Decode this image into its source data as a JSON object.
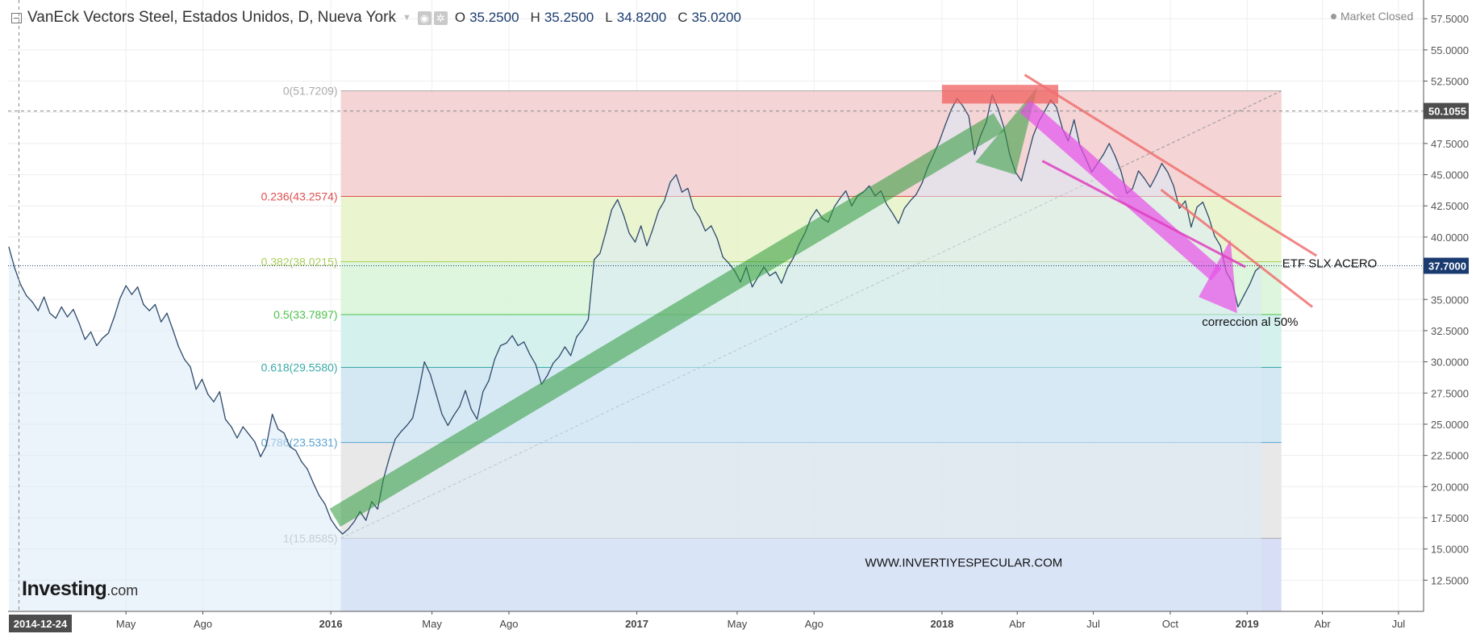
{
  "header": {
    "title": "VanEck Vectors Steel, Estados Unidos, D, Nueva York",
    "open_label": "O",
    "open_value": "35.2500",
    "high_label": "H",
    "high_value": "35.2500",
    "low_label": "L",
    "low_value": "34.8200",
    "close_label": "C",
    "close_value": "35.0200",
    "market_status": "Market Closed",
    "logo_main": "Investing",
    "logo_suffix": ".com"
  },
  "chart_data": {
    "type": "line",
    "title": "VanEck Vectors Steel, Estados Unidos, D, Nueva York",
    "xlabel": "",
    "ylabel": "",
    "ylim": [
      10.0,
      59.0
    ],
    "xlim": [
      "2014-12-11",
      "2019-07-31"
    ],
    "grid": true,
    "price_axis_side": "right",
    "price_axis_ticks": [
      12.5,
      15,
      17.5,
      20,
      22.5,
      25,
      27.5,
      30,
      32.5,
      35,
      37.5,
      40,
      42.5,
      45,
      47.5,
      50,
      52.5,
      55,
      57.5
    ],
    "price_axis_labels": [
      "12.5000",
      "15.0000",
      "17.5000",
      "20.0000",
      "22.5000",
      "25.0000",
      "27.5000",
      "30.0000",
      "32.5000",
      "35.0000",
      "37.5000",
      "40.0000",
      "42.5000",
      "45.0000",
      "47.5000",
      "50.0000",
      "52.5000",
      "55.0000",
      "57.5000"
    ],
    "time_axis": [
      {
        "date": "2015-05-01",
        "label": "May",
        "bold": false
      },
      {
        "date": "2015-08-01",
        "label": "Ago",
        "bold": false
      },
      {
        "date": "2016-01-01",
        "label": "2016",
        "bold": true
      },
      {
        "date": "2016-05-01",
        "label": "May",
        "bold": false
      },
      {
        "date": "2016-08-01",
        "label": "Ago",
        "bold": false
      },
      {
        "date": "2017-01-01",
        "label": "2017",
        "bold": true
      },
      {
        "date": "2017-05-01",
        "label": "May",
        "bold": false
      },
      {
        "date": "2017-08-01",
        "label": "Ago",
        "bold": false
      },
      {
        "date": "2018-01-01",
        "label": "2018",
        "bold": true
      },
      {
        "date": "2018-04-01",
        "label": "Abr",
        "bold": false
      },
      {
        "date": "2018-07-01",
        "label": "Jul",
        "bold": false
      },
      {
        "date": "2018-10-01",
        "label": "Oct",
        "bold": false
      },
      {
        "date": "2019-01-01",
        "label": "2019",
        "bold": true
      },
      {
        "date": "2019-04-01",
        "label": "Abr",
        "bold": false
      },
      {
        "date": "2019-07-01",
        "label": "Jul",
        "bold": false
      }
    ],
    "crosshair": {
      "date": "2014-12-24",
      "date_label": "2014-12-24",
      "price": 50.1055,
      "price_label": "50.1055"
    },
    "last_price": {
      "value": 37.7,
      "label": "37.7000"
    },
    "series": [
      {
        "name": "",
        "color": "#2e4a6b",
        "fill": "#dbe9f7",
        "points": [
          [
            "2014-12-12",
            39.2
          ],
          [
            "2014-12-19",
            37.5
          ],
          [
            "2014-12-26",
            36.2
          ],
          [
            "2015-01-02",
            35.3
          ],
          [
            "2015-01-09",
            34.8
          ],
          [
            "2015-01-16",
            34.1
          ],
          [
            "2015-01-23",
            35.2
          ],
          [
            "2015-01-30",
            33.9
          ],
          [
            "2015-02-06",
            33.5
          ],
          [
            "2015-02-13",
            34.4
          ],
          [
            "2015-02-20",
            33.6
          ],
          [
            "2015-02-27",
            34.2
          ],
          [
            "2015-03-06",
            33.1
          ],
          [
            "2015-03-13",
            31.8
          ],
          [
            "2015-03-20",
            32.4
          ],
          [
            "2015-03-27",
            31.3
          ],
          [
            "2015-04-03",
            31.9
          ],
          [
            "2015-04-10",
            32.3
          ],
          [
            "2015-04-17",
            33.6
          ],
          [
            "2015-04-24",
            35.1
          ],
          [
            "2015-05-01",
            36.1
          ],
          [
            "2015-05-08",
            35.4
          ],
          [
            "2015-05-15",
            36.0
          ],
          [
            "2015-05-22",
            34.6
          ],
          [
            "2015-05-29",
            34.1
          ],
          [
            "2015-06-05",
            34.6
          ],
          [
            "2015-06-12",
            33.2
          ],
          [
            "2015-06-19",
            33.9
          ],
          [
            "2015-06-26",
            32.6
          ],
          [
            "2015-07-03",
            31.2
          ],
          [
            "2015-07-10",
            30.2
          ],
          [
            "2015-07-17",
            29.6
          ],
          [
            "2015-07-24",
            27.8
          ],
          [
            "2015-07-31",
            28.6
          ],
          [
            "2015-08-07",
            27.4
          ],
          [
            "2015-08-14",
            26.8
          ],
          [
            "2015-08-21",
            27.6
          ],
          [
            "2015-08-28",
            25.4
          ],
          [
            "2015-09-04",
            24.8
          ],
          [
            "2015-09-11",
            23.9
          ],
          [
            "2015-09-18",
            24.8
          ],
          [
            "2015-09-25",
            24.2
          ],
          [
            "2015-10-02",
            23.6
          ],
          [
            "2015-10-09",
            22.4
          ],
          [
            "2015-10-16",
            23.3
          ],
          [
            "2015-10-23",
            25.8
          ],
          [
            "2015-10-30",
            24.6
          ],
          [
            "2015-11-06",
            24.3
          ],
          [
            "2015-11-13",
            23.2
          ],
          [
            "2015-11-20",
            22.9
          ],
          [
            "2015-11-27",
            22.0
          ],
          [
            "2015-12-04",
            21.4
          ],
          [
            "2015-12-11",
            20.3
          ],
          [
            "2015-12-18",
            19.3
          ],
          [
            "2015-12-25",
            18.6
          ],
          [
            "2016-01-01",
            17.4
          ],
          [
            "2016-01-08",
            16.7
          ],
          [
            "2016-01-15",
            16.2
          ],
          [
            "2016-01-22",
            16.6
          ],
          [
            "2016-01-29",
            17.2
          ],
          [
            "2016-02-05",
            18.0
          ],
          [
            "2016-02-12",
            17.3
          ],
          [
            "2016-02-19",
            18.8
          ],
          [
            "2016-02-26",
            18.2
          ],
          [
            "2016-03-04",
            20.6
          ],
          [
            "2016-03-11",
            22.3
          ],
          [
            "2016-03-18",
            23.8
          ],
          [
            "2016-03-25",
            24.4
          ],
          [
            "2016-04-01",
            24.9
          ],
          [
            "2016-04-08",
            25.5
          ],
          [
            "2016-04-15",
            27.6
          ],
          [
            "2016-04-22",
            30.0
          ],
          [
            "2016-04-29",
            29.0
          ],
          [
            "2016-05-06",
            27.4
          ],
          [
            "2016-05-13",
            25.8
          ],
          [
            "2016-05-20",
            24.9
          ],
          [
            "2016-05-27",
            25.7
          ],
          [
            "2016-06-03",
            26.4
          ],
          [
            "2016-06-10",
            27.7
          ],
          [
            "2016-06-17",
            26.2
          ],
          [
            "2016-06-24",
            25.4
          ],
          [
            "2016-07-01",
            27.6
          ],
          [
            "2016-07-08",
            28.5
          ],
          [
            "2016-07-15",
            30.2
          ],
          [
            "2016-07-22",
            31.3
          ],
          [
            "2016-07-29",
            31.5
          ],
          [
            "2016-08-05",
            32.1
          ],
          [
            "2016-08-12",
            31.3
          ],
          [
            "2016-08-19",
            31.6
          ],
          [
            "2016-08-26",
            30.6
          ],
          [
            "2016-09-02",
            29.8
          ],
          [
            "2016-09-09",
            28.2
          ],
          [
            "2016-09-16",
            28.9
          ],
          [
            "2016-09-23",
            29.9
          ],
          [
            "2016-09-30",
            30.4
          ],
          [
            "2016-10-07",
            31.2
          ],
          [
            "2016-10-14",
            30.5
          ],
          [
            "2016-10-21",
            32.0
          ],
          [
            "2016-10-28",
            32.6
          ],
          [
            "2016-11-04",
            33.4
          ],
          [
            "2016-11-11",
            38.2
          ],
          [
            "2016-11-18",
            38.7
          ],
          [
            "2016-11-25",
            40.4
          ],
          [
            "2016-12-02",
            42.2
          ],
          [
            "2016-12-09",
            43.0
          ],
          [
            "2016-12-16",
            41.8
          ],
          [
            "2016-12-23",
            40.3
          ],
          [
            "2016-12-30",
            39.6
          ],
          [
            "2017-01-06",
            40.9
          ],
          [
            "2017-01-13",
            39.3
          ],
          [
            "2017-01-20",
            40.6
          ],
          [
            "2017-01-27",
            42.1
          ],
          [
            "2017-02-03",
            42.9
          ],
          [
            "2017-02-10",
            44.4
          ],
          [
            "2017-02-17",
            45.0
          ],
          [
            "2017-02-24",
            43.6
          ],
          [
            "2017-03-03",
            43.9
          ],
          [
            "2017-03-10",
            42.3
          ],
          [
            "2017-03-17",
            41.6
          ],
          [
            "2017-03-24",
            40.5
          ],
          [
            "2017-03-31",
            40.9
          ],
          [
            "2017-04-07",
            39.9
          ],
          [
            "2017-04-14",
            38.4
          ],
          [
            "2017-04-21",
            37.9
          ],
          [
            "2017-04-28",
            37.3
          ],
          [
            "2017-05-05",
            36.4
          ],
          [
            "2017-05-12",
            37.6
          ],
          [
            "2017-05-19",
            36.0
          ],
          [
            "2017-05-26",
            36.8
          ],
          [
            "2017-06-02",
            37.6
          ],
          [
            "2017-06-09",
            36.9
          ],
          [
            "2017-06-16",
            37.2
          ],
          [
            "2017-06-23",
            36.3
          ],
          [
            "2017-06-30",
            37.5
          ],
          [
            "2017-07-07",
            38.3
          ],
          [
            "2017-07-14",
            39.4
          ],
          [
            "2017-07-21",
            40.3
          ],
          [
            "2017-07-28",
            41.5
          ],
          [
            "2017-08-04",
            42.2
          ],
          [
            "2017-08-11",
            41.5
          ],
          [
            "2017-08-18",
            41.2
          ],
          [
            "2017-08-25",
            42.4
          ],
          [
            "2017-09-01",
            43.1
          ],
          [
            "2017-09-08",
            43.7
          ],
          [
            "2017-09-15",
            42.5
          ],
          [
            "2017-09-22",
            43.3
          ],
          [
            "2017-09-29",
            43.6
          ],
          [
            "2017-10-06",
            44.1
          ],
          [
            "2017-10-13",
            43.3
          ],
          [
            "2017-10-20",
            43.7
          ],
          [
            "2017-10-27",
            42.6
          ],
          [
            "2017-11-03",
            41.9
          ],
          [
            "2017-11-10",
            41.1
          ],
          [
            "2017-11-17",
            42.3
          ],
          [
            "2017-11-24",
            42.9
          ],
          [
            "2017-12-01",
            43.4
          ],
          [
            "2017-12-08",
            44.3
          ],
          [
            "2017-12-15",
            45.6
          ],
          [
            "2017-12-22",
            46.6
          ],
          [
            "2017-12-29",
            47.7
          ],
          [
            "2018-01-05",
            49.0
          ],
          [
            "2018-01-12",
            50.2
          ],
          [
            "2018-01-19",
            51.1
          ],
          [
            "2018-01-26",
            50.5
          ],
          [
            "2018-02-02",
            49.7
          ],
          [
            "2018-02-09",
            46.6
          ],
          [
            "2018-02-16",
            48.1
          ],
          [
            "2018-02-23",
            49.2
          ],
          [
            "2018-03-02",
            51.4
          ],
          [
            "2018-03-09",
            50.3
          ],
          [
            "2018-03-16",
            48.8
          ],
          [
            "2018-03-23",
            46.6
          ],
          [
            "2018-03-30",
            45.2
          ],
          [
            "2018-04-06",
            44.5
          ],
          [
            "2018-04-13",
            46.3
          ],
          [
            "2018-04-20",
            48.1
          ],
          [
            "2018-04-27",
            49.3
          ],
          [
            "2018-05-04",
            50.1
          ],
          [
            "2018-05-11",
            51.0
          ],
          [
            "2018-05-18",
            50.4
          ],
          [
            "2018-05-25",
            48.7
          ],
          [
            "2018-06-01",
            47.7
          ],
          [
            "2018-06-08",
            49.4
          ],
          [
            "2018-06-15",
            47.3
          ],
          [
            "2018-06-22",
            46.3
          ],
          [
            "2018-06-29",
            45.2
          ],
          [
            "2018-07-06",
            45.9
          ],
          [
            "2018-07-13",
            46.6
          ],
          [
            "2018-07-20",
            47.5
          ],
          [
            "2018-07-27",
            46.5
          ],
          [
            "2018-08-03",
            45.3
          ],
          [
            "2018-08-10",
            43.5
          ],
          [
            "2018-08-17",
            43.9
          ],
          [
            "2018-08-24",
            45.3
          ],
          [
            "2018-08-31",
            44.7
          ],
          [
            "2018-09-07",
            44.0
          ],
          [
            "2018-09-14",
            44.9
          ],
          [
            "2018-09-21",
            45.9
          ],
          [
            "2018-09-28",
            45.2
          ],
          [
            "2018-10-05",
            44.1
          ],
          [
            "2018-10-12",
            42.3
          ],
          [
            "2018-10-19",
            42.9
          ],
          [
            "2018-10-26",
            40.8
          ],
          [
            "2018-11-02",
            42.4
          ],
          [
            "2018-11-09",
            42.8
          ],
          [
            "2018-11-16",
            41.6
          ],
          [
            "2018-11-23",
            40.1
          ],
          [
            "2018-11-30",
            39.3
          ],
          [
            "2018-12-07",
            37.2
          ],
          [
            "2018-12-14",
            36.4
          ],
          [
            "2018-12-21",
            34.4
          ],
          [
            "2018-12-28",
            35.3
          ],
          [
            "2019-01-04",
            36.2
          ],
          [
            "2019-01-11",
            37.3
          ],
          [
            "2019-01-18",
            37.7
          ]
        ]
      }
    ],
    "fibonacci": {
      "start_date": "2016-01-13",
      "end_date": "2019-02-11",
      "levels": [
        {
          "ratio": "0",
          "value": 51.7209,
          "label": "0(51.7209)",
          "color": "#aaaaaa",
          "fill": "#f2cccc"
        },
        {
          "ratio": "0.236",
          "value": 43.2574,
          "label": "0.236(43.2574)",
          "color": "#e04f4f",
          "fill": "#e6f3c8"
        },
        {
          "ratio": "0.382",
          "value": 38.0215,
          "label": "0.382(38.0215)",
          "color": "#a9cf57",
          "fill": "#d7f4d7"
        },
        {
          "ratio": "0.5",
          "value": 33.7897,
          "label": "0.5(33.7897)",
          "color": "#4cc04c",
          "fill": "#cdeeea"
        },
        {
          "ratio": "0.618",
          "value": 29.558,
          "label": "0.618(29.5580)",
          "color": "#3aaaa8",
          "fill": "#cce4f1"
        },
        {
          "ratio": "0.786",
          "value": 23.5331,
          "label": "0.786(23.5331)",
          "color": "#5aa3cf",
          "fill": "#e4e4e4"
        },
        {
          "ratio": "1",
          "value": 15.8585,
          "label": "1(15.8585)",
          "color": "#aaaaaa",
          "fill": "#d4daf5"
        }
      ]
    },
    "annotations": [
      {
        "text": "ETF SLX ACERO",
        "date": "2019-02-12",
        "price": 37.9
      },
      {
        "text": "correccion al 50%",
        "date": "2018-11-08",
        "price": 33.2
      },
      {
        "text": "WWW.INVERTIYESPECULAR.COM",
        "date": "2017-10-01",
        "price": 13.9
      }
    ]
  }
}
